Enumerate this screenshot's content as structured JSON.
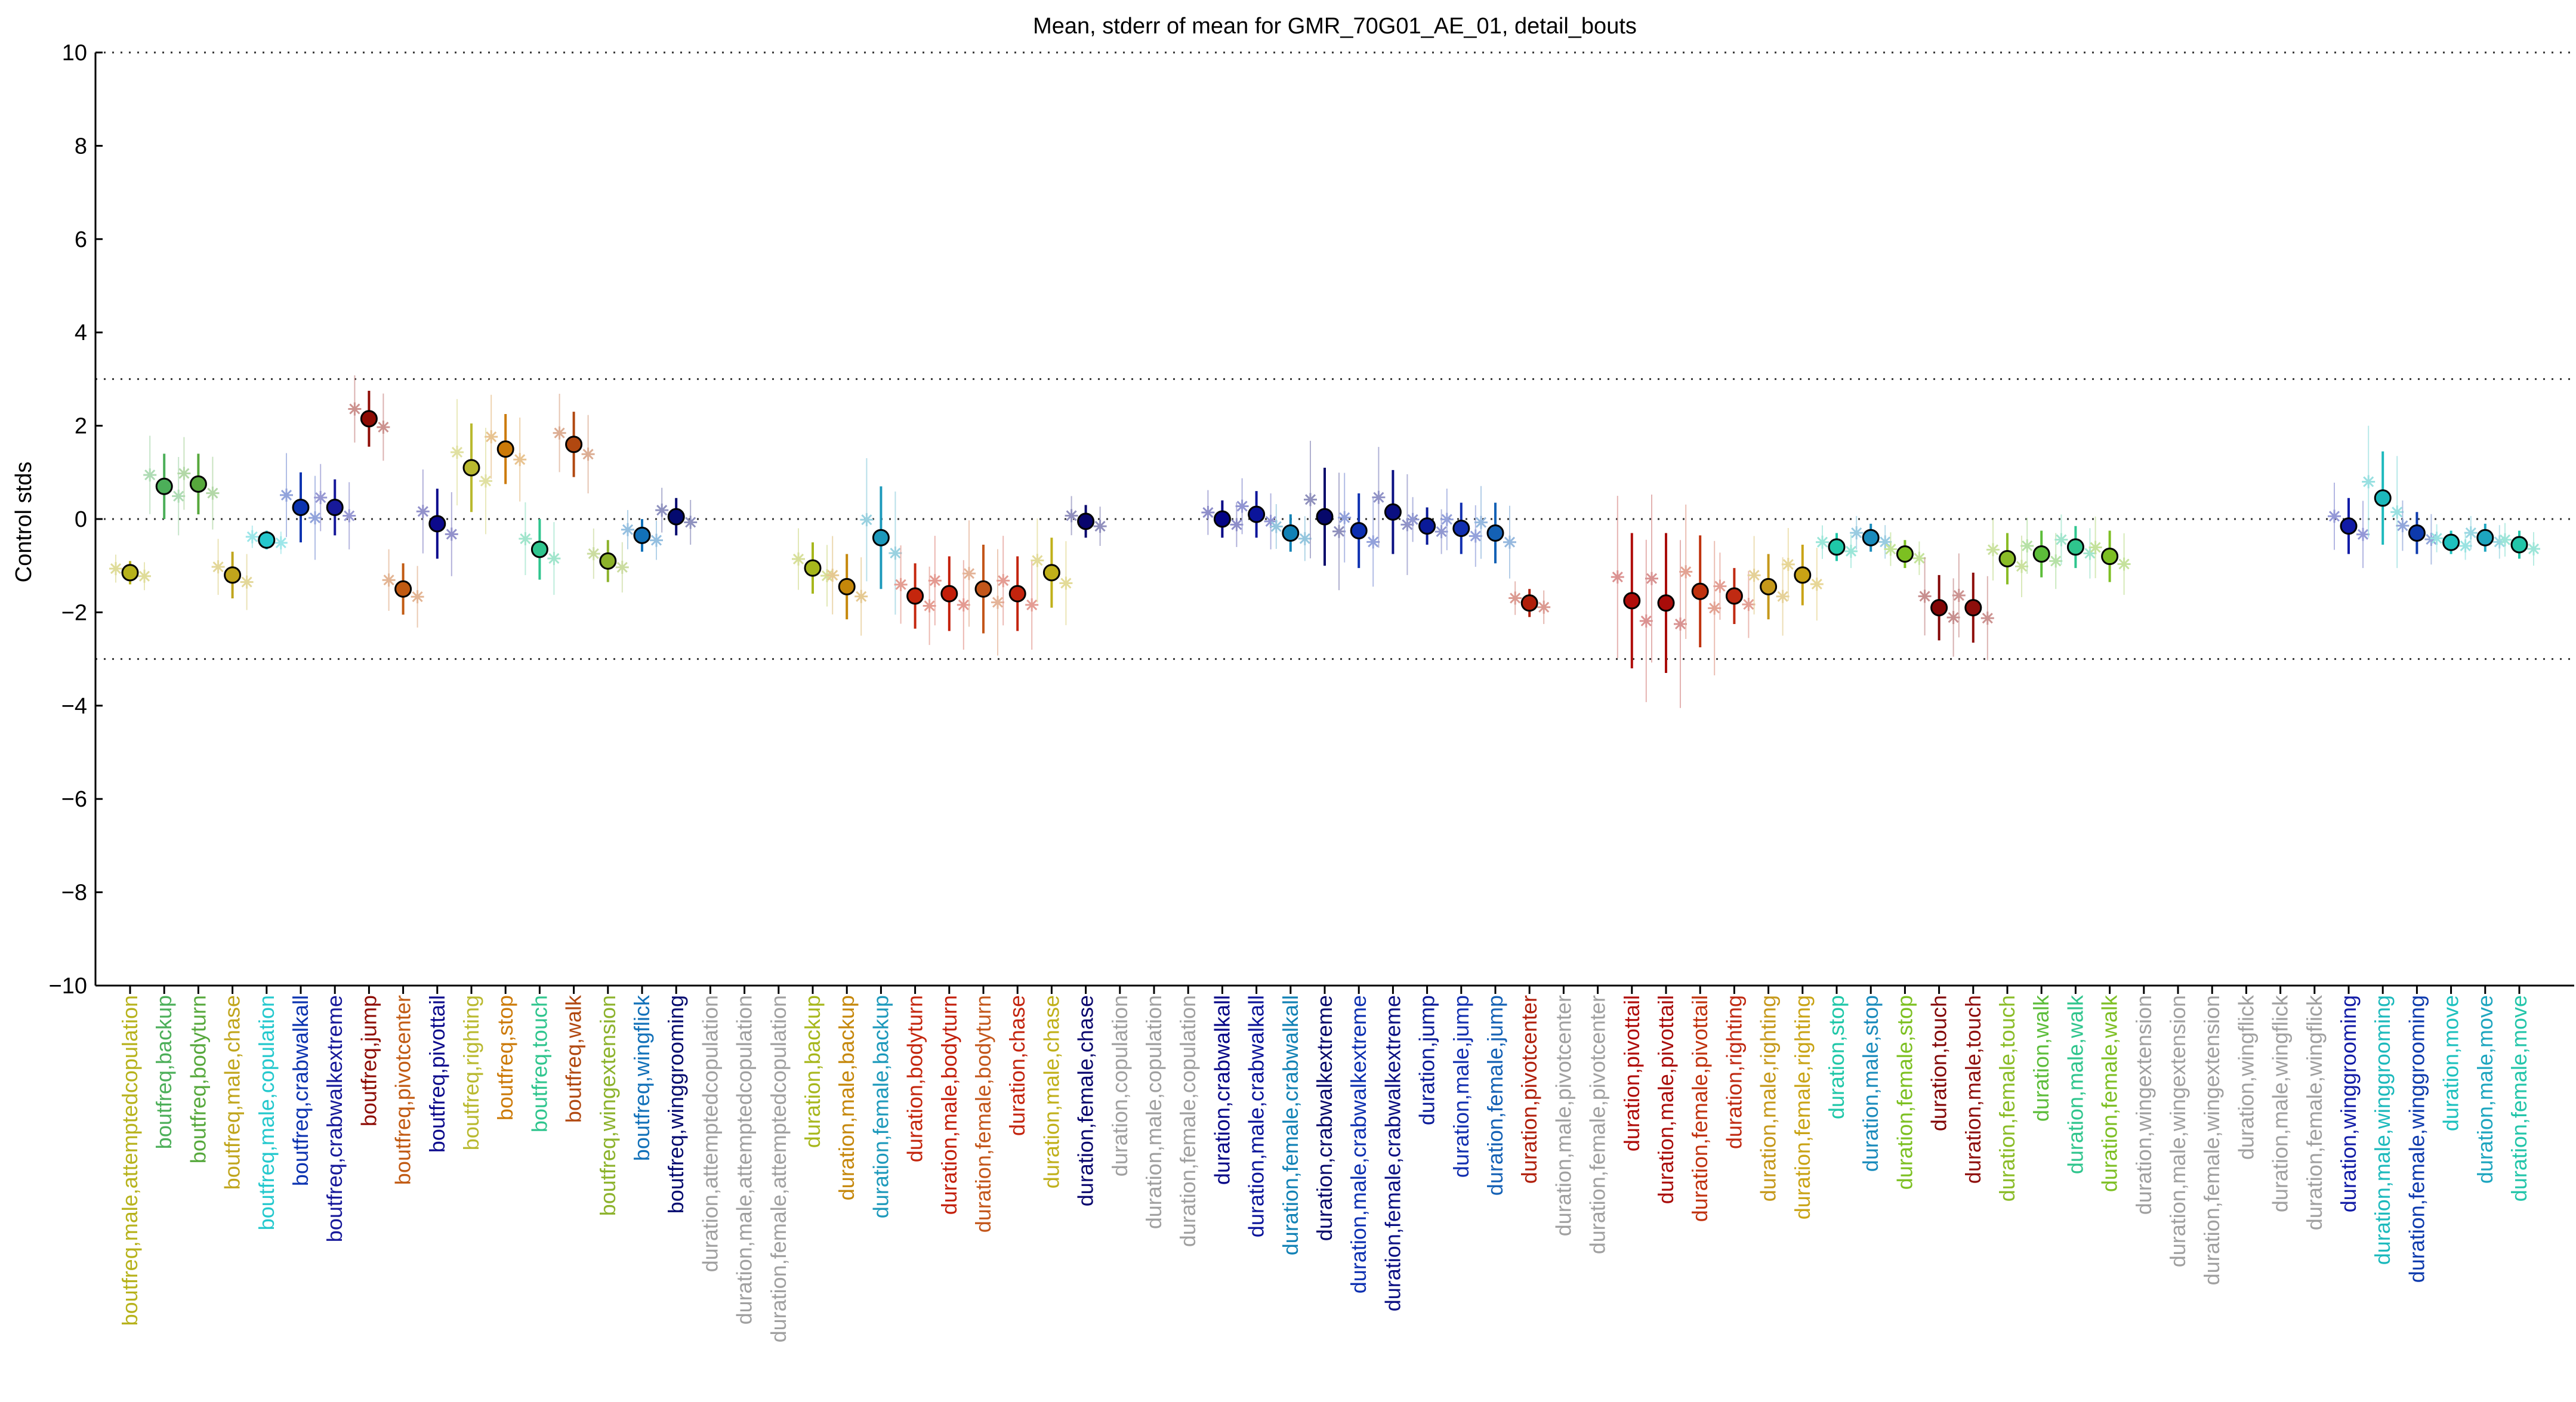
{
  "chart_data": {
    "type": "scatter",
    "title": "Mean, stderr of mean for GMR_70G01_AE_01, detail_bouts",
    "xlabel": "",
    "ylabel": "Control stds",
    "ylim": [
      -10,
      10
    ],
    "yticks": [
      -10,
      -8,
      -6,
      -4,
      -2,
      0,
      2,
      4,
      6,
      8,
      10
    ],
    "reference_lines": [
      -10,
      -3,
      0,
      3,
      10
    ],
    "grid": false,
    "categories": [
      "boutfreq,male,attemptedcopulation",
      "boutfreq,backup",
      "boutfreq,bodyturn",
      "boutfreq,male,chase",
      "boutfreq,male,copulation",
      "boutfreq,crabwalkall",
      "boutfreq,crabwalkextreme",
      "boutfreq,jump",
      "boutfreq,pivotcenter",
      "boutfreq,pivottail",
      "boutfreq,righting",
      "boutfreq,stop",
      "boutfreq,touch",
      "boutfreq,walk",
      "boutfreq,wingextension",
      "boutfreq,wingflick",
      "boutfreq,winggrooming",
      "duration,attemptedcopulation",
      "duration,male,attemptedcopulation",
      "duration,female,attemptedcopulation",
      "duration,backup",
      "duration,male,backup",
      "duration,female,backup",
      "duration,bodyturn",
      "duration,male,bodyturn",
      "duration,female,bodyturn",
      "duration,chase",
      "duration,male,chase",
      "duration,female,chase",
      "duration,copulation",
      "duration,male,copulation",
      "duration,female,copulation",
      "duration,crabwalkall",
      "duration,male,crabwalkall",
      "duration,female,crabwalkall",
      "duration,crabwalkextreme",
      "duration,male,crabwalkextreme",
      "duration,female,crabwalkextreme",
      "duration,jump",
      "duration,male,jump",
      "duration,female,jump",
      "duration,pivotcenter",
      "duration,male,pivotcenter",
      "duration,female,pivotcenter",
      "duration,pivottail",
      "duration,male,pivottail",
      "duration,female,pivottail",
      "duration,righting",
      "duration,male,righting",
      "duration,female,righting",
      "duration,stop",
      "duration,male,stop",
      "duration,female,stop",
      "duration,touch",
      "duration,male,touch",
      "duration,female,touch",
      "duration,walk",
      "duration,male,walk",
      "duration,female,walk",
      "duration,wingextension",
      "duration,male,wingextension",
      "duration,female,wingextension",
      "duration,wingflick",
      "duration,male,wingflick",
      "duration,female,wingflick",
      "duration,winggrooming",
      "duration,male,winggrooming",
      "duration,female,winggrooming",
      "duration,move",
      "duration,male,move",
      "duration,female,move"
    ],
    "series": [
      {
        "values": [
          -1.15,
          0.7,
          0.75,
          -1.2,
          -0.45,
          0.25,
          0.25,
          2.15,
          -1.5,
          -0.1,
          1.1,
          1.5,
          -0.65,
          1.6,
          -0.9,
          -0.35,
          0.05,
          null,
          null,
          null,
          -1.05,
          -1.45,
          -0.4,
          -1.65,
          -1.6,
          -1.5,
          -1.6,
          -1.15,
          -0.05,
          null,
          null,
          null,
          0.0,
          0.1,
          -0.3,
          0.05,
          -0.25,
          0.15,
          -0.15,
          -0.2,
          -0.3,
          -1.8,
          null,
          null,
          -1.75,
          -1.8,
          -1.55,
          -1.65,
          -1.45,
          -1.2,
          -0.6,
          -0.4,
          -0.75,
          -1.9,
          -1.9,
          -0.85,
          -0.75,
          -0.6,
          -0.8,
          null,
          null,
          null,
          null,
          null,
          null,
          -0.15,
          0.45,
          -0.3,
          -0.5,
          -0.4,
          -0.55
        ],
        "stderr": [
          0.25,
          0.7,
          0.65,
          0.5,
          0.2,
          0.75,
          0.6,
          0.6,
          0.55,
          0.75,
          0.95,
          0.75,
          0.65,
          0.7,
          0.45,
          0.35,
          0.4,
          null,
          null,
          null,
          0.55,
          0.7,
          1.1,
          0.7,
          0.8,
          0.95,
          0.8,
          0.75,
          0.35,
          null,
          null,
          null,
          0.4,
          0.5,
          0.4,
          1.05,
          0.8,
          0.9,
          0.4,
          0.55,
          0.65,
          0.3,
          null,
          null,
          1.45,
          1.5,
          1.2,
          0.6,
          0.7,
          0.65,
          0.3,
          0.3,
          0.3,
          0.7,
          0.75,
          0.55,
          0.5,
          0.45,
          0.55,
          null,
          null,
          null,
          null,
          null,
          null,
          0.6,
          1.0,
          0.45,
          0.25,
          0.3,
          0.3
        ]
      }
    ],
    "colors": [
      "#b7b21c",
      "#4caf59",
      "#56a83c",
      "#c0a51c",
      "#24c8cd",
      "#0b33b0",
      "#17199a",
      "#8e0c05",
      "#c15a12",
      "#0c0a8c",
      "#b9b92f",
      "#cc7a08",
      "#2fc58e",
      "#b14810",
      "#8cb22b",
      "#1271b9",
      "#040a6f",
      "#a0a0a0",
      "#a0a0a0",
      "#a0a0a0",
      "#a7b71c",
      "#c5870a",
      "#1d99bb",
      "#c4260d",
      "#c31e0a",
      "#c3561a",
      "#c3240e",
      "#c0b01a",
      "#08056d",
      "#a0a0a0",
      "#a0a0a0",
      "#a0a0a0",
      "#040486",
      "#0b149a",
      "#1181b5",
      "#06086a",
      "#0c2fb0",
      "#0a0f82",
      "#0a1a98",
      "#122fb0",
      "#1461b5",
      "#b01f0b",
      "#a0a0a0",
      "#a0a0a0",
      "#b00d0a",
      "#a90c0a",
      "#c0320e",
      "#c02a12",
      "#c5981a",
      "#c9a315",
      "#1fc7a8",
      "#1a8bbc",
      "#7cc021",
      "#820505",
      "#8e0e0b",
      "#8abc27",
      "#5cbd3a",
      "#2fc58d",
      "#7dbf23",
      "#a0a0a0",
      "#a0a0a0",
      "#a0a0a0",
      "#a0a0a0",
      "#a0a0a0",
      "#a0a0a0",
      "#111ba6",
      "#1cb9bc",
      "#0d3aad",
      "#1dc1be",
      "#1da5bf",
      "#23c5a9"
    ]
  }
}
